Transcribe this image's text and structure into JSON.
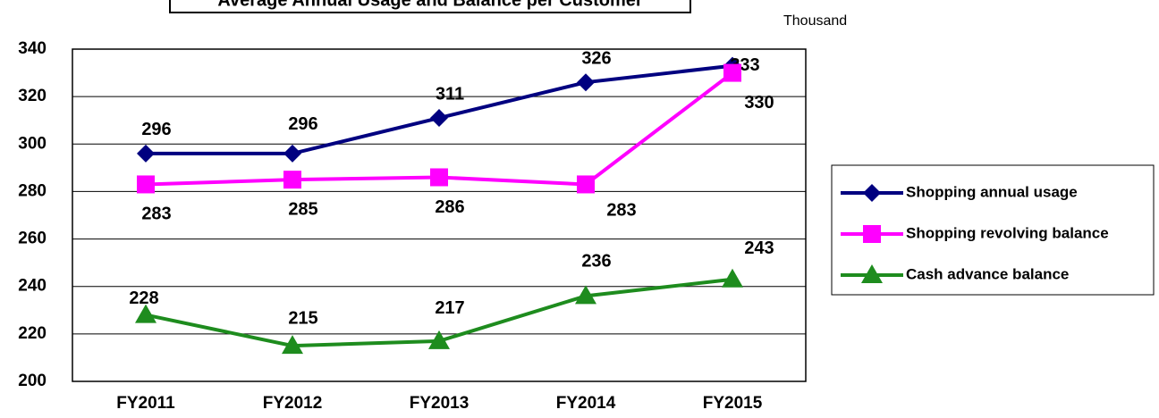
{
  "chart_data": {
    "type": "line",
    "title": "Average Annual Usage and Balance per Customer",
    "y_unit": "Thousand",
    "categories": [
      "FY2011",
      "FY2012",
      "FY2013",
      "FY2014",
      "FY2015"
    ],
    "series": [
      {
        "name": "Shopping annual usage",
        "color": "#000080",
        "marker": "diamond",
        "values": [
          296,
          296,
          311,
          326,
          333
        ]
      },
      {
        "name": "Shopping revolving balance",
        "color": "#ff00ff",
        "marker": "square",
        "values": [
          283,
          285,
          286,
          283,
          330
        ]
      },
      {
        "name": "Cash advance balance",
        "color": "#1e8c1e",
        "marker": "triangle",
        "values": [
          228,
          215,
          217,
          236,
          243
        ]
      }
    ],
    "ylim": [
      200,
      340
    ],
    "yticks": [
      200,
      220,
      240,
      260,
      280,
      300,
      320,
      340
    ],
    "grid": true,
    "legend": "right"
  }
}
